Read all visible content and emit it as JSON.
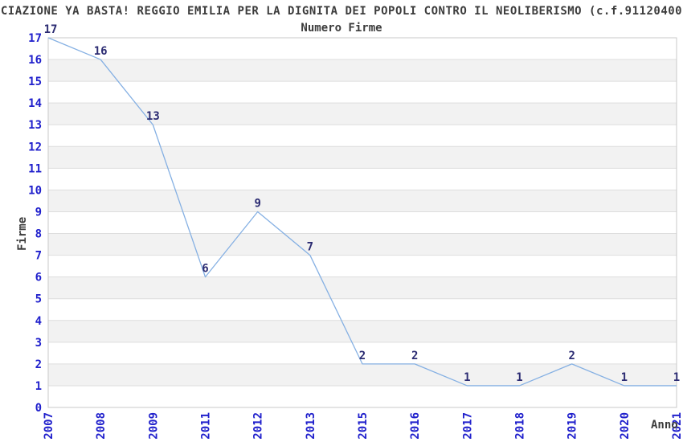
{
  "header": {
    "title": "CIAZIONE YA BASTA! REGGIO EMILIA PER LA DIGNITA DEI POPOLI CONTRO IL NEOLIBERISMO (c.f.91120400",
    "subtitle": "Numero Firme"
  },
  "chart_data": {
    "type": "line",
    "title": "Numero Firme",
    "categories": [
      "2007",
      "2008",
      "2009",
      "2011",
      "2012",
      "2013",
      "2015",
      "2016",
      "2017",
      "2018",
      "2019",
      "2020",
      "2021"
    ],
    "values": [
      17,
      16,
      13,
      6,
      9,
      7,
      2,
      2,
      1,
      1,
      2,
      1,
      1
    ],
    "xlabel": "Anno",
    "ylabel": "Firme",
    "ylim": [
      0,
      17
    ],
    "ytick_step": 1,
    "grid": "horizontal-bands-alternating",
    "legend": "none",
    "point_labels_visible": true,
    "colors": {
      "line": "#85b0e3",
      "tick_labels": "#2020cc",
      "point_labels": "#2b2b72",
      "band": "#f2f2f2",
      "gridline": "#dddddd",
      "plot_border": "#c9c9c9",
      "title_text": "#3c3c3c"
    }
  }
}
